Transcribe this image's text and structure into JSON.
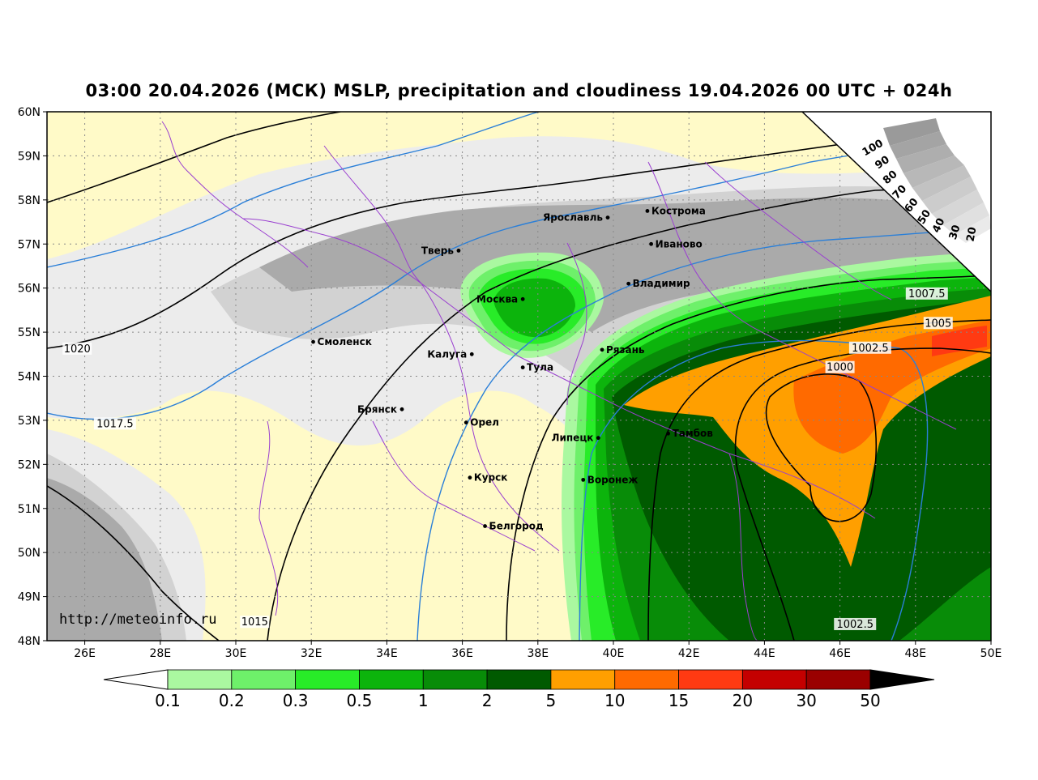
{
  "title": "03:00 20.04.2026 (МСК) MSLP, precipitation and cloudiness 19.04.2026 00 UTC + 024h",
  "source_url": "http://meteoinfo.ru",
  "axes": {
    "lat_labels": [
      "60N",
      "59N",
      "58N",
      "57N",
      "56N",
      "55N",
      "54N",
      "53N",
      "52N",
      "51N",
      "50N",
      "49N",
      "48N"
    ],
    "lon_labels": [
      "26E",
      "28E",
      "30E",
      "32E",
      "34E",
      "36E",
      "38E",
      "40E",
      "42E",
      "44E",
      "46E",
      "48E",
      "50E"
    ]
  },
  "cities": [
    {
      "name": "Кострома",
      "lon": 40.9,
      "lat": 57.75
    },
    {
      "name": "Ярославль",
      "lon": 39.85,
      "lat": 57.6
    },
    {
      "name": "Иваново",
      "lon": 41.0,
      "lat": 57.0
    },
    {
      "name": "Тверь",
      "lon": 35.9,
      "lat": 56.85
    },
    {
      "name": "Владимир",
      "lon": 40.4,
      "lat": 56.1
    },
    {
      "name": "Москва",
      "lon": 37.6,
      "lat": 55.75
    },
    {
      "name": "Смоленск",
      "lon": 32.05,
      "lat": 54.78
    },
    {
      "name": "Калуга",
      "lon": 36.25,
      "lat": 54.5
    },
    {
      "name": "Рязань",
      "lon": 39.7,
      "lat": 54.6
    },
    {
      "name": "Тула",
      "lon": 37.6,
      "lat": 54.2
    },
    {
      "name": "Брянск",
      "lon": 34.4,
      "lat": 53.25
    },
    {
      "name": "Орел",
      "lon": 36.1,
      "lat": 52.95
    },
    {
      "name": "Липецк",
      "lon": 39.6,
      "lat": 52.6
    },
    {
      "name": "Тамбов",
      "lon": 41.45,
      "lat": 52.7
    },
    {
      "name": "Курск",
      "lon": 36.2,
      "lat": 51.7
    },
    {
      "name": "Воронеж",
      "lon": 39.2,
      "lat": 51.65
    },
    {
      "name": "Белгород",
      "lon": 36.6,
      "lat": 50.6
    }
  ],
  "isobars": [
    {
      "label": "1020",
      "lon": 25.8,
      "lat": 54.6
    },
    {
      "label": "1017.5",
      "lon": 26.8,
      "lat": 52.9
    },
    {
      "label": "1015",
      "lon": 30.5,
      "lat": 48.4
    },
    {
      "label": "1007.5",
      "lon": 48.3,
      "lat": 55.85
    },
    {
      "label": "1005",
      "lon": 48.6,
      "lat": 55.18
    },
    {
      "label": "1002.5",
      "lon": 46.8,
      "lat": 54.62
    },
    {
      "label": "1000",
      "lon": 46.0,
      "lat": 54.18
    },
    {
      "label": "1002.5",
      "lon": 46.4,
      "lat": 48.35
    }
  ],
  "cloud_scale": [
    "100",
    "90",
    "80",
    "70",
    "60",
    "50",
    "40",
    "30",
    "20"
  ],
  "precip_legend": {
    "labels": [
      "0.1",
      "0.2",
      "0.3",
      "0.5",
      "1",
      "2",
      "5",
      "10",
      "15",
      "20",
      "30",
      "50"
    ],
    "colors": [
      "#aaf8a0",
      "#6ef06a",
      "#28ec28",
      "#0cb40c",
      "#088c08",
      "#005a00",
      "#ff9f00",
      "#ff6a00",
      "#ff3a12",
      "#c40000",
      "#9a0000"
    ]
  },
  "colors": {
    "land": "#fffac8",
    "cloud_light": "#ececec",
    "cloud_mid": "#d2d2d2",
    "cloud_dark": "#aaaaaa",
    "isobar": "#000000",
    "isotherm": "#2a7fd8",
    "border": "#9a3fd0"
  }
}
